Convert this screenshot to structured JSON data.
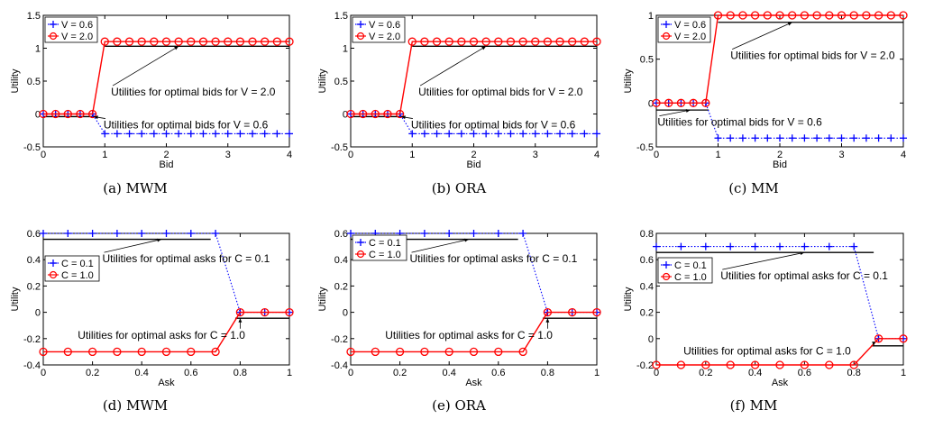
{
  "colors": {
    "blue": "#0000ff",
    "red": "#ff0000",
    "black": "#000000"
  },
  "chart_data": [
    {
      "id": "a",
      "caption": "(a) MWM",
      "type": "line",
      "xlabel": "Bid",
      "ylabel": "Utility",
      "xlim": [
        0,
        4
      ],
      "ylim": [
        -0.5,
        1.5
      ],
      "xticks": [
        0,
        1,
        2,
        3,
        4
      ],
      "yticks": [
        -0.5,
        0,
        0.5,
        1,
        1.5
      ],
      "ytick_labels": [
        "-0.5",
        "0",
        "0.5",
        "1",
        "1.5"
      ],
      "legend": "top-left",
      "series": [
        {
          "name": "V = 0.6",
          "color": "#0000ff",
          "marker": "+",
          "line": "dotted",
          "x": [
            0,
            0.2,
            0.4,
            0.6,
            0.8,
            1,
            1.2,
            1.4,
            1.6,
            1.8,
            2,
            2.2,
            2.4,
            2.6,
            2.8,
            3,
            3.2,
            3.4,
            3.6,
            3.8,
            4
          ],
          "y": [
            0,
            0,
            0,
            0,
            0,
            -0.3,
            -0.3,
            -0.3,
            -0.3,
            -0.3,
            -0.3,
            -0.3,
            -0.3,
            -0.3,
            -0.3,
            -0.3,
            -0.3,
            -0.3,
            -0.3,
            -0.3,
            -0.3
          ]
        },
        {
          "name": "V = 2.0",
          "color": "#ff0000",
          "marker": "o",
          "line": "solid",
          "x": [
            0,
            0.2,
            0.4,
            0.6,
            0.8,
            1,
            1.2,
            1.4,
            1.6,
            1.8,
            2,
            2.2,
            2.4,
            2.6,
            2.8,
            3,
            3.2,
            3.4,
            3.6,
            3.8,
            4
          ],
          "y": [
            0,
            0,
            0,
            0,
            0,
            1.1,
            1.1,
            1.1,
            1.1,
            1.1,
            1.1,
            1.1,
            1.1,
            1.1,
            1.1,
            1.1,
            1.1,
            1.1,
            1.1,
            1.1,
            1.1
          ]
        }
      ],
      "optimal_lines": [
        {
          "x": [
            1,
            4
          ],
          "y": [
            1.03,
            1.03
          ]
        },
        {
          "x": [
            0,
            0.85
          ],
          "y": [
            -0.04,
            -0.04
          ]
        }
      ],
      "annotations": [
        {
          "text": "Utilities for optimal bids for V = 2.0",
          "x": 1.1,
          "y": 0.28,
          "arrow_to": [
            2.2,
            1.03
          ]
        },
        {
          "text": "Utilities for optimal bids for V = 0.6",
          "x": 0.98,
          "y": -0.22,
          "arrow_to": [
            0.82,
            -0.04
          ]
        }
      ]
    },
    {
      "id": "b",
      "caption": "(b) ORA",
      "type": "line",
      "xlabel": "Bid",
      "ylabel": "Utility",
      "xlim": [
        0,
        4
      ],
      "ylim": [
        -0.5,
        1.5
      ],
      "xticks": [
        0,
        1,
        2,
        3,
        4
      ],
      "yticks": [
        -0.5,
        0,
        0.5,
        1,
        1.5
      ],
      "ytick_labels": [
        "-0.5",
        "0",
        "0.5",
        "1",
        "1.5"
      ],
      "legend": "top-left",
      "series": [
        {
          "name": "V = 0.6",
          "color": "#0000ff",
          "marker": "+",
          "line": "dotted",
          "x": [
            0,
            0.2,
            0.4,
            0.6,
            0.8,
            1,
            1.2,
            1.4,
            1.6,
            1.8,
            2,
            2.2,
            2.4,
            2.6,
            2.8,
            3,
            3.2,
            3.4,
            3.6,
            3.8,
            4
          ],
          "y": [
            0,
            0,
            0,
            0,
            0,
            -0.3,
            -0.3,
            -0.3,
            -0.3,
            -0.3,
            -0.3,
            -0.3,
            -0.3,
            -0.3,
            -0.3,
            -0.3,
            -0.3,
            -0.3,
            -0.3,
            -0.3,
            -0.3
          ]
        },
        {
          "name": "V = 2.0",
          "color": "#ff0000",
          "marker": "o",
          "line": "solid",
          "x": [
            0,
            0.2,
            0.4,
            0.6,
            0.8,
            1,
            1.2,
            1.4,
            1.6,
            1.8,
            2,
            2.2,
            2.4,
            2.6,
            2.8,
            3,
            3.2,
            3.4,
            3.6,
            3.8,
            4
          ],
          "y": [
            0,
            0,
            0,
            0,
            0,
            1.1,
            1.1,
            1.1,
            1.1,
            1.1,
            1.1,
            1.1,
            1.1,
            1.1,
            1.1,
            1.1,
            1.1,
            1.1,
            1.1,
            1.1,
            1.1
          ]
        }
      ],
      "optimal_lines": [
        {
          "x": [
            1,
            4
          ],
          "y": [
            1.03,
            1.03
          ]
        },
        {
          "x": [
            0,
            0.85
          ],
          "y": [
            -0.04,
            -0.04
          ]
        }
      ],
      "annotations": [
        {
          "text": "Utilities for optimal bids for V = 2.0",
          "x": 1.1,
          "y": 0.28,
          "arrow_to": [
            2.2,
            1.03
          ]
        },
        {
          "text": "Utilities for optimal bids for V = 0.6",
          "x": 0.98,
          "y": -0.22,
          "arrow_to": [
            0.82,
            -0.04
          ]
        }
      ]
    },
    {
      "id": "c",
      "caption": "(c) MM",
      "type": "line",
      "xlabel": "Bid",
      "ylabel": "Utility",
      "xlim": [
        0,
        4
      ],
      "ylim": [
        -0.5,
        1
      ],
      "xticks": [
        0,
        1,
        2,
        3,
        4
      ],
      "yticks": [
        -0.5,
        0,
        0.5,
        1
      ],
      "ytick_labels": [
        "-0.5",
        "0",
        "0.5",
        "1"
      ],
      "legend": "top-left",
      "series": [
        {
          "name": "V = 0.6",
          "color": "#0000ff",
          "marker": "+",
          "line": "dotted",
          "x": [
            0,
            0.2,
            0.4,
            0.6,
            0.8,
            1,
            1.2,
            1.4,
            1.6,
            1.8,
            2,
            2.2,
            2.4,
            2.6,
            2.8,
            3,
            3.2,
            3.4,
            3.6,
            3.8,
            4
          ],
          "y": [
            0,
            0,
            0,
            0,
            0,
            -0.4,
            -0.4,
            -0.4,
            -0.4,
            -0.4,
            -0.4,
            -0.4,
            -0.4,
            -0.4,
            -0.4,
            -0.4,
            -0.4,
            -0.4,
            -0.4,
            -0.4,
            -0.4
          ]
        },
        {
          "name": "V = 2.0",
          "color": "#ff0000",
          "marker": "o",
          "line": "solid",
          "x": [
            0,
            0.2,
            0.4,
            0.6,
            0.8,
            1,
            1.2,
            1.4,
            1.6,
            1.8,
            2,
            2.2,
            2.4,
            2.6,
            2.8,
            3,
            3.2,
            3.4,
            3.6,
            3.8,
            4
          ],
          "y": [
            0,
            0,
            0,
            0,
            0,
            1,
            1,
            1,
            1,
            1,
            1,
            1,
            1,
            1,
            1,
            1,
            1,
            1,
            1,
            1,
            1
          ]
        }
      ],
      "optimal_lines": [
        {
          "x": [
            1,
            4
          ],
          "y": [
            0.92,
            0.92
          ]
        },
        {
          "x": [
            0,
            0.85
          ],
          "y": [
            -0.08,
            -0.08
          ]
        }
      ],
      "annotations": [
        {
          "text": "Utilities for optimal bids for V = 2.0",
          "x": 1.2,
          "y": 0.5,
          "arrow_to": [
            2.2,
            0.92
          ]
        },
        {
          "text": "Utilities for optimal bids for V = 0.6",
          "x": 0.02,
          "y": -0.26,
          "arrow_to": [
            0.55,
            -0.08
          ]
        }
      ]
    },
    {
      "id": "d",
      "caption": "(d) MWM",
      "type": "line",
      "xlabel": "Ask",
      "ylabel": "Utility",
      "xlim": [
        0,
        1
      ],
      "ylim": [
        -0.4,
        0.6
      ],
      "xticks": [
        0,
        0.2,
        0.4,
        0.6,
        0.8,
        1
      ],
      "yticks": [
        -0.4,
        -0.2,
        0,
        0.2,
        0.4,
        0.6
      ],
      "ytick_labels": [
        "-0.4",
        "-0.2",
        "0",
        "0.2",
        "0.4",
        "0.6"
      ],
      "legend": "top-right",
      "series": [
        {
          "name": "C = 0.1",
          "color": "#0000ff",
          "marker": "+",
          "line": "dotted",
          "x": [
            0,
            0.1,
            0.2,
            0.3,
            0.4,
            0.5,
            0.6,
            0.7,
            0.8,
            0.9,
            1
          ],
          "y": [
            0.6,
            0.6,
            0.6,
            0.6,
            0.6,
            0.6,
            0.6,
            0.6,
            0,
            0,
            0
          ]
        },
        {
          "name": "C = 1.0",
          "color": "#ff0000",
          "marker": "o",
          "line": "solid",
          "x": [
            0,
            0.1,
            0.2,
            0.3,
            0.4,
            0.5,
            0.6,
            0.7,
            0.8,
            0.9,
            1
          ],
          "y": [
            -0.3,
            -0.3,
            -0.3,
            -0.3,
            -0.3,
            -0.3,
            -0.3,
            -0.3,
            0,
            0,
            0
          ]
        }
      ],
      "optimal_lines": [
        {
          "x": [
            0,
            0.68
          ],
          "y": [
            0.555,
            0.555
          ]
        },
        {
          "x": [
            0.78,
            1
          ],
          "y": [
            -0.045,
            -0.045
          ]
        }
      ],
      "annotations": [
        {
          "text": "Utilities for optimal asks for C = 0.1",
          "x": 0.24,
          "y": 0.38,
          "arrow_to": [
            0.48,
            0.555
          ]
        },
        {
          "text": "Utilities for optimal asks for C = 1.0",
          "x": 0.14,
          "y": -0.2,
          "arrow_to": [
            0.8,
            -0.045
          ]
        }
      ]
    },
    {
      "id": "e",
      "caption": "(e) ORA",
      "type": "line",
      "xlabel": "Ask",
      "ylabel": "Utility",
      "xlim": [
        0,
        1
      ],
      "ylim": [
        -0.4,
        0.6
      ],
      "xticks": [
        0,
        0.2,
        0.4,
        0.6,
        0.8,
        1
      ],
      "yticks": [
        -0.4,
        -0.2,
        0,
        0.2,
        0.4,
        0.6
      ],
      "ytick_labels": [
        "-0.4",
        "-0.2",
        "0",
        "0.2",
        "0.4",
        "0.6"
      ],
      "legend": "top-left",
      "series": [
        {
          "name": "C = 0.1",
          "color": "#0000ff",
          "marker": "+",
          "line": "dotted",
          "x": [
            0,
            0.1,
            0.2,
            0.3,
            0.4,
            0.5,
            0.6,
            0.7,
            0.8,
            0.9,
            1
          ],
          "y": [
            0.6,
            0.6,
            0.6,
            0.6,
            0.6,
            0.6,
            0.6,
            0.6,
            0,
            0,
            0
          ]
        },
        {
          "name": "C = 1.0",
          "color": "#ff0000",
          "marker": "o",
          "line": "solid",
          "x": [
            0,
            0.1,
            0.2,
            0.3,
            0.4,
            0.5,
            0.6,
            0.7,
            0.8,
            0.9,
            1
          ],
          "y": [
            -0.3,
            -0.3,
            -0.3,
            -0.3,
            -0.3,
            -0.3,
            -0.3,
            -0.3,
            0,
            0,
            0
          ]
        }
      ],
      "optimal_lines": [
        {
          "x": [
            0,
            0.68
          ],
          "y": [
            0.555,
            0.555
          ]
        },
        {
          "x": [
            0.78,
            1
          ],
          "y": [
            -0.045,
            -0.045
          ]
        }
      ],
      "annotations": [
        {
          "text": "Utilities for optimal asks for C = 0.1",
          "x": 0.24,
          "y": 0.38,
          "arrow_to": [
            0.48,
            0.555
          ]
        },
        {
          "text": "Utilities for optimal asks for C = 1.0",
          "x": 0.14,
          "y": -0.2,
          "arrow_to": [
            0.8,
            -0.045
          ]
        }
      ]
    },
    {
      "id": "f",
      "caption": "(f) MM",
      "type": "line",
      "xlabel": "Ask",
      "ylabel": "Utility",
      "xlim": [
        0,
        1
      ],
      "ylim": [
        -0.2,
        0.8
      ],
      "xticks": [
        0,
        0.2,
        0.4,
        0.6,
        0.8,
        1
      ],
      "yticks": [
        -0.2,
        0,
        0.2,
        0.4,
        0.6,
        0.8
      ],
      "ytick_labels": [
        "-0.2",
        "0",
        "0.2",
        "0.4",
        "0.6",
        "0.8"
      ],
      "legend": "middle-left",
      "series": [
        {
          "name": "C = 0.1",
          "color": "#0000ff",
          "marker": "+",
          "line": "dotted",
          "x": [
            0,
            0.1,
            0.2,
            0.3,
            0.4,
            0.5,
            0.6,
            0.7,
            0.8,
            0.9,
            1
          ],
          "y": [
            0.7,
            0.7,
            0.7,
            0.7,
            0.7,
            0.7,
            0.7,
            0.7,
            0.7,
            0,
            0
          ]
        },
        {
          "name": "C = 1.0",
          "color": "#ff0000",
          "marker": "o",
          "line": "solid",
          "x": [
            0,
            0.1,
            0.2,
            0.3,
            0.4,
            0.5,
            0.6,
            0.7,
            0.8,
            0.9,
            1
          ],
          "y": [
            -0.2,
            -0.2,
            -0.2,
            -0.2,
            -0.2,
            -0.2,
            -0.2,
            -0.2,
            -0.2,
            0,
            0
          ]
        }
      ],
      "optimal_lines": [
        {
          "x": [
            0,
            0.88
          ],
          "y": [
            0.655,
            0.655
          ]
        },
        {
          "x": [
            0.87,
            1
          ],
          "y": [
            -0.055,
            -0.055
          ]
        }
      ],
      "annotations": [
        {
          "text": "Utilities for optimal asks for C = 0.1",
          "x": 0.26,
          "y": 0.45,
          "arrow_to": [
            0.6,
            0.655
          ]
        },
        {
          "text": "Utilities for optimal asks for C = 1.0",
          "x": 0.11,
          "y": -0.12,
          "arrow_to": [
            0.88,
            -0.055
          ]
        }
      ]
    }
  ]
}
